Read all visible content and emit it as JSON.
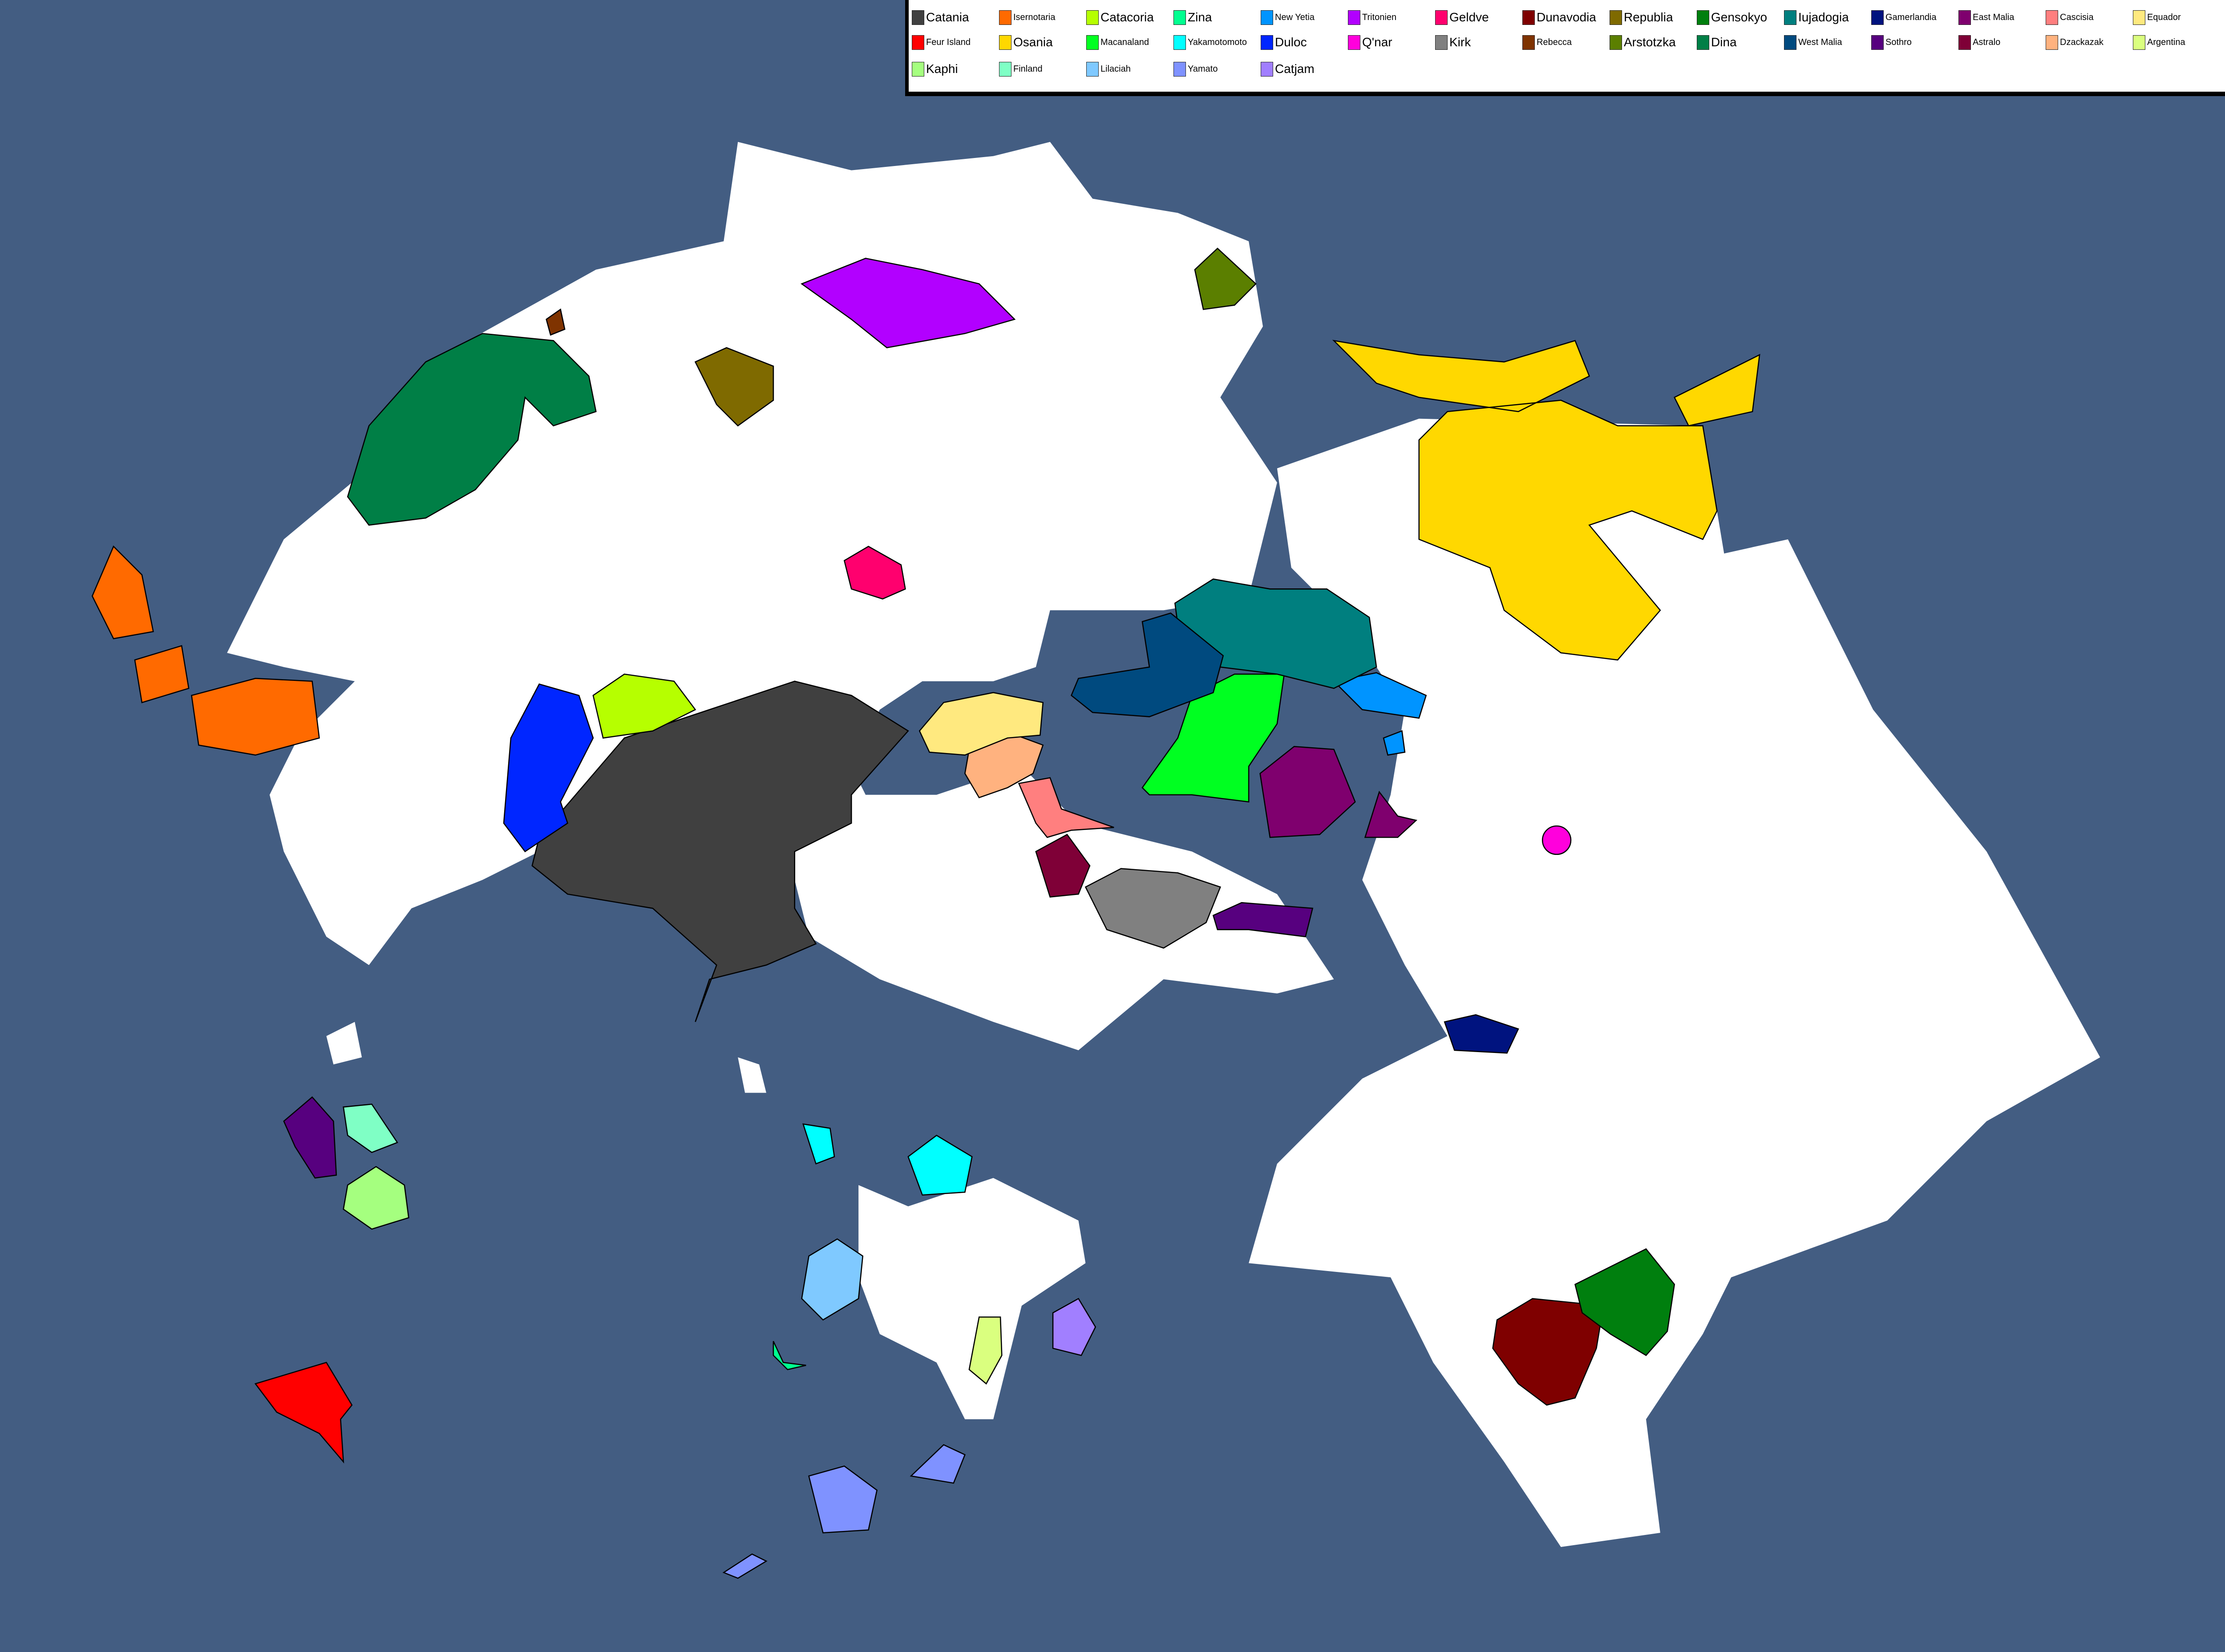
{
  "map": {
    "sea_color": "#435d82",
    "land_color": "#ffffff"
  },
  "legend": [
    {
      "name": "Catania",
      "color": "#404040"
    },
    {
      "name": "Feur Island",
      "color": "#ff0000"
    },
    {
      "name": "Kaphi",
      "color": "#a5ff7f"
    },
    {
      "name": "Isernotaria",
      "color": "#ff6a00"
    },
    {
      "name": "Osania",
      "color": "#ffd800"
    },
    {
      "name": "Finland",
      "color": "#7fffc5"
    },
    {
      "name": "Catacoria",
      "color": "#b6ff00"
    },
    {
      "name": "Macanaland",
      "color": "#00ff21"
    },
    {
      "name": "Lilaciah",
      "color": "#7fc9ff"
    },
    {
      "name": "Zina",
      "color": "#00ff90"
    },
    {
      "name": "Yakamotomoto",
      "color": "#00ffff"
    },
    {
      "name": "Yamato",
      "color": "#7f92ff"
    },
    {
      "name": "New Yetia",
      "color": "#0094ff"
    },
    {
      "name": "Duloc",
      "color": "#0026ff"
    },
    {
      "name": "Catjam",
      "color": "#a17fff"
    },
    {
      "name": "Tritonien",
      "color": "#b200ff"
    },
    {
      "name": "Q'nar",
      "color": "#ff00dc"
    },
    {
      "name": "Geldve",
      "color": "#ff006e"
    },
    {
      "name": "Kirk",
      "color": "#808080"
    },
    {
      "name": "Dunavodia",
      "color": "#7f0000"
    },
    {
      "name": "Rebecca",
      "color": "#7f3300"
    },
    {
      "name": "Republia",
      "color": "#7f6a00"
    },
    {
      "name": "Arstotzka",
      "color": "#5b7f00"
    },
    {
      "name": "Gensokyo",
      "color": "#007f0e"
    },
    {
      "name": "Dina",
      "color": "#007f46"
    },
    {
      "name": "Iujadogia",
      "color": "#007f7f"
    },
    {
      "name": "West Malia",
      "color": "#004a7f"
    },
    {
      "name": "Gamerlandia",
      "color": "#00137f"
    },
    {
      "name": "Sothro",
      "color": "#57007f"
    },
    {
      "name": "East Malia",
      "color": "#7f006e"
    },
    {
      "name": "Astralo",
      "color": "#7f0037"
    },
    {
      "name": "Cascisia",
      "color": "#ff7f7f"
    },
    {
      "name": "Dzackazak",
      "color": "#ffb27f"
    },
    {
      "name": "Equador",
      "color": "#ffe97f"
    },
    {
      "name": "Argentina",
      "color": "#daff7f"
    }
  ]
}
